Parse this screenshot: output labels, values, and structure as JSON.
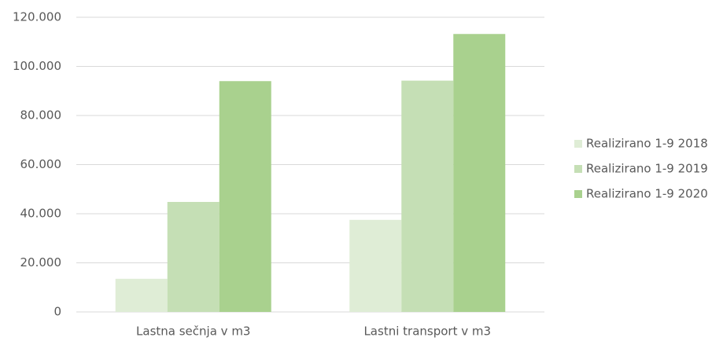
{
  "chart_data": {
    "type": "bar",
    "categories": [
      "Lastna sečnja v m3",
      "Lastni transport v m3"
    ],
    "series": [
      {
        "name": "Realizirano 1-9 2018",
        "color": "#dfedd6",
        "values": [
          13500,
          37500
        ]
      },
      {
        "name": "Realizirano 1-9 2019",
        "color": "#c5dfb5",
        "values": [
          44800,
          94200
        ]
      },
      {
        "name": "Realizirano 1-9 2020",
        "color": "#a9d18e",
        "values": [
          94000,
          113200
        ]
      }
    ],
    "ylim": [
      0,
      120000
    ],
    "yticks": [
      0,
      {
        "value": 20000,
        "label": "20.000"
      },
      {
        "value": 40000,
        "label": "40.000"
      },
      {
        "value": 60000,
        "label": "60.000"
      },
      {
        "value": 80000,
        "label": "80.000"
      },
      {
        "value": 100000,
        "label": "100.000"
      },
      {
        "value": 120000,
        "label": "120.000"
      }
    ],
    "grid": true,
    "legend": "right"
  }
}
